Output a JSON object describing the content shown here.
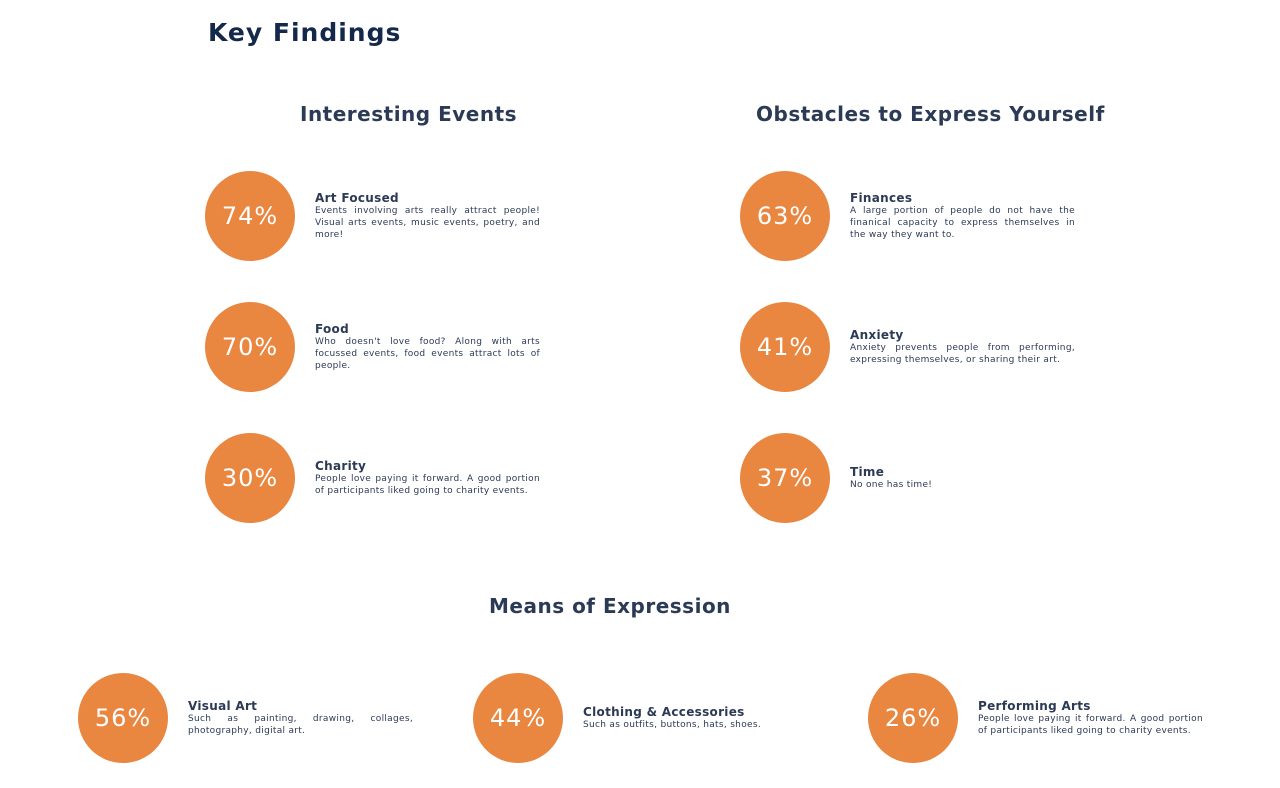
{
  "page": {
    "title": "Key Findings"
  },
  "sections": {
    "interesting_events": {
      "title": "Interesting Events",
      "items": [
        {
          "percent": "74%",
          "label": "Art Focused",
          "description": "Events involving arts really attract people! Visual arts events, music events, poetry, and more!"
        },
        {
          "percent": "70%",
          "label": "Food",
          "description": "Who doesn't love food? Along with arts focussed events, food events attract lots of people."
        },
        {
          "percent": "30%",
          "label": "Charity",
          "description": "People love paying it forward. A good portion of participants liked going to charity events."
        }
      ]
    },
    "obstacles": {
      "title": "Obstacles to Express Yourself",
      "items": [
        {
          "percent": "63%",
          "label": "Finances",
          "description": "A large portion of people do not have the finanical capacity to express themselves in the way they want to."
        },
        {
          "percent": "41%",
          "label": "Anxiety",
          "description": "Anxiety prevents people from performing, expressing themselves, or sharing their art."
        },
        {
          "percent": "37%",
          "label": "Time",
          "description": "No one has time!"
        }
      ]
    },
    "means": {
      "title": "Means of Expression",
      "items": [
        {
          "percent": "56%",
          "label": "Visual Art",
          "description": "Such as painting, drawing, collages, photography, digital art."
        },
        {
          "percent": "44%",
          "label": "Clothing & Accessories",
          "description": "Such as outfits, buttons, hats, shoes."
        },
        {
          "percent": "26%",
          "label": "Performing Arts",
          "description": "People love paying it forward. A good portion of participants liked going to charity events."
        }
      ]
    }
  },
  "colors": {
    "accent": "#e98640",
    "heading": "#13284a",
    "text": "#2b3a55"
  }
}
